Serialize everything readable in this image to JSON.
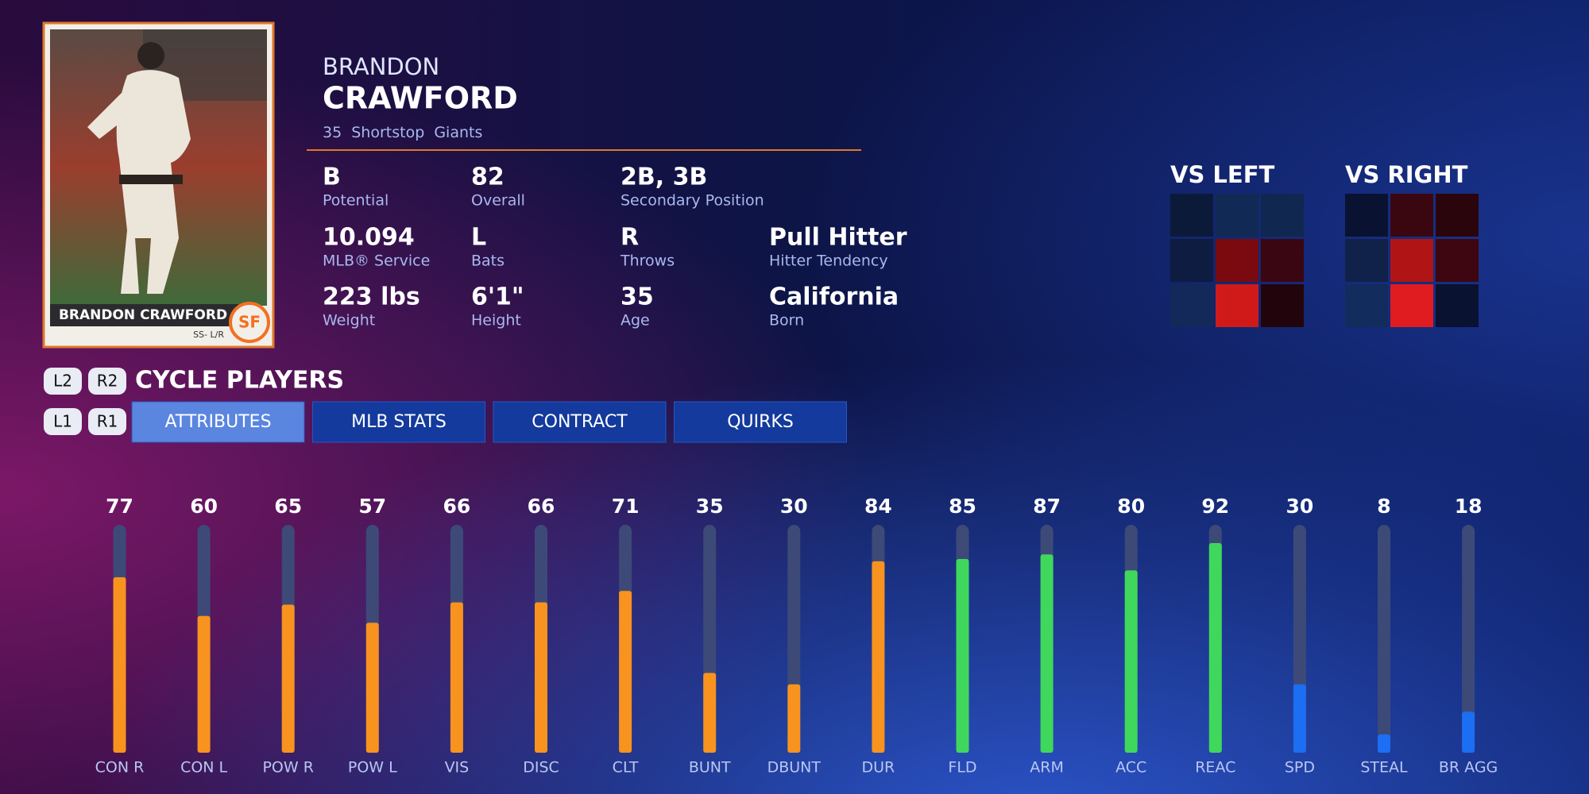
{
  "card": {
    "name": "BRANDON CRAWFORD",
    "detail": "SS- L/R"
  },
  "player": {
    "first_name": "BRANDON",
    "last_name": "CRAWFORD",
    "number": "35",
    "position": "Shortstop",
    "team": "Giants"
  },
  "info": [
    [
      {
        "value": "B",
        "label": "Potential"
      },
      {
        "value": "82",
        "label": "Overall"
      },
      {
        "value": "2B, 3B",
        "label": "Secondary Position"
      }
    ],
    [
      {
        "value": "10.094",
        "label": "MLB® Service"
      },
      {
        "value": "L",
        "label": "Bats"
      },
      {
        "value": "R",
        "label": "Throws"
      },
      {
        "value": "Pull Hitter",
        "label": "Hitter Tendency"
      }
    ],
    [
      {
        "value": "223 lbs",
        "label": "Weight"
      },
      {
        "value": "6'1\"",
        "label": "Height"
      },
      {
        "value": "35",
        "label": "Age"
      },
      {
        "value": "California",
        "label": "Born"
      }
    ]
  ],
  "hot_zones": [
    {
      "title": "VS LEFT",
      "cells": [
        "#0c1a3a",
        "#112a55",
        "#10284f",
        "#0d1c40",
        "#7a0a10",
        "#3a0612",
        "#12295a",
        "#d01a1a",
        "#22050c"
      ]
    },
    {
      "title": "VS RIGHT",
      "cells": [
        "#0a1232",
        "#3a0710",
        "#2a050c",
        "#10224a",
        "#b01414",
        "#3d0610",
        "#132c5e",
        "#e01c20",
        "#0a1232"
      ]
    }
  ],
  "controls": {
    "cycle_buttons": [
      "L2",
      "R2"
    ],
    "cycle_label": "CYCLE PLAYERS",
    "tab_buttons": [
      "L1",
      "R1"
    ]
  },
  "tabs": {
    "items": [
      "ATTRIBUTES",
      "MLB STATS",
      "CONTRACT",
      "QUIRKS"
    ],
    "active": 0
  },
  "chart_data": {
    "type": "bar",
    "categories": [
      "CON R",
      "CON L",
      "POW R",
      "POW L",
      "VIS",
      "DISC",
      "CLT",
      "BUNT",
      "DBUNT",
      "DUR",
      "FLD",
      "ARM",
      "ACC",
      "REAC",
      "SPD",
      "STEAL",
      "BR AGG"
    ],
    "values": [
      77,
      60,
      65,
      57,
      66,
      66,
      71,
      35,
      30,
      84,
      85,
      87,
      80,
      92,
      30,
      8,
      18
    ],
    "colors": [
      "#f7931e",
      "#f7931e",
      "#f7931e",
      "#f7931e",
      "#f7931e",
      "#f7931e",
      "#f7931e",
      "#f7931e",
      "#f7931e",
      "#f7931e",
      "#3fd85c",
      "#3fd85c",
      "#3fd85c",
      "#3fd85c",
      "#1c6ef2",
      "#1c6ef2",
      "#1c6ef2"
    ],
    "track_color": "#3d4a78",
    "ylim": [
      0,
      100
    ]
  }
}
